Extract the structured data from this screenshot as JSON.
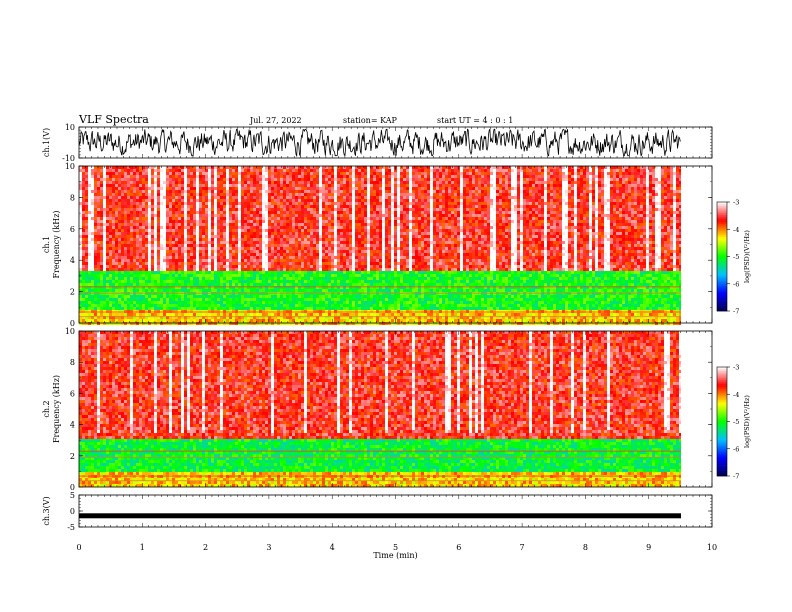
{
  "header": {
    "title": "VLF Spectra",
    "date": "Jul. 27, 2022",
    "station": "station= KAP",
    "start": "start UT =  4 : 0 : 1"
  },
  "chart_data": [
    {
      "type": "line",
      "name": "ch1-waveform",
      "ylabel": "ch.1(V)",
      "ylim": [
        -10,
        10
      ],
      "yticks": [
        "10",
        "-10"
      ],
      "xlim": [
        0,
        10
      ],
      "data_extent_min": [
        0,
        9.82
      ],
      "description_values": {
        "min": -10,
        "max": 10
      }
    },
    {
      "type": "heatmap",
      "name": "ch1-spectrogram",
      "ylabel": "ch.1\nFrequency (kHz)",
      "ylim": [
        0,
        10
      ],
      "yticks": [
        "0",
        "2",
        "4",
        "6",
        "8",
        "10"
      ],
      "xlim": [
        0,
        10
      ],
      "colorbar": {
        "label": "log(PSD)(V²/Hz)",
        "range": [
          -7,
          -3
        ],
        "ticks": [
          "-3",
          "-4",
          "-5",
          "-6",
          "-7"
        ]
      },
      "bands_khz": [
        {
          "from": 0.0,
          "to": 1.0,
          "level": -4.2
        },
        {
          "from": 1.0,
          "to": 3.5,
          "level": -5.0
        },
        {
          "from": 3.5,
          "to": 10.0,
          "level": -3.6
        }
      ]
    },
    {
      "type": "heatmap",
      "name": "ch2-spectrogram",
      "ylabel": "ch.2\nFrequency (kHz)",
      "ylim": [
        0,
        10
      ],
      "yticks": [
        "0",
        "2",
        "4",
        "6",
        "8",
        "10"
      ],
      "xlim": [
        0,
        10
      ],
      "colorbar": {
        "label": "log(PSD)(V²/Hz)",
        "range": [
          -7,
          -3
        ],
        "ticks": [
          "-3",
          "-4",
          "-5",
          "-6",
          "-7"
        ]
      },
      "bands_khz": [
        {
          "from": 0.0,
          "to": 1.0,
          "level": -4.2
        },
        {
          "from": 1.0,
          "to": 3.2,
          "level": -5.1
        },
        {
          "from": 3.2,
          "to": 10.0,
          "level": -3.6
        }
      ]
    },
    {
      "type": "line",
      "name": "ch3-waveform",
      "ylabel": "ch.3(V)",
      "ylim": [
        -5,
        5
      ],
      "yticks": [
        "5",
        "0",
        "-5"
      ],
      "xlim": [
        0,
        10
      ],
      "level": -1.5
    }
  ],
  "xaxis": {
    "label": "Time (min)",
    "ticks": [
      "0",
      "1",
      "2",
      "3",
      "4",
      "5",
      "6",
      "7",
      "8",
      "9",
      "10"
    ],
    "data_end_min": 9.82
  },
  "colors": {
    "colormap": [
      "#00004f",
      "#0000ff",
      "#00c0ff",
      "#00ff00",
      "#ffff00",
      "#ff0000",
      "#ffffff"
    ],
    "frame": "#000000"
  }
}
